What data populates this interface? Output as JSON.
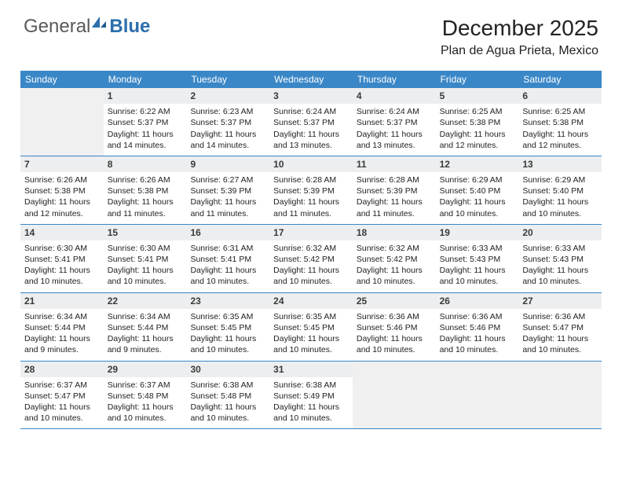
{
  "logo": {
    "text1": "General",
    "text2": "Blue"
  },
  "title": "December 2025",
  "location": "Plan de Agua Prieta, Mexico",
  "colors": {
    "header_bg": "#3a87c7",
    "header_fg": "#ffffff",
    "daynum_bg": "#eceeef",
    "empty_bg": "#f0f0f0",
    "divider": "#3a87c7",
    "logo_gray": "#5a5a5a",
    "logo_blue": "#2b6fab"
  },
  "day_names": [
    "Sunday",
    "Monday",
    "Tuesday",
    "Wednesday",
    "Thursday",
    "Friday",
    "Saturday"
  ],
  "weeks": [
    [
      null,
      {
        "n": "1",
        "sr": "Sunrise: 6:22 AM",
        "ss": "Sunset: 5:37 PM",
        "d1": "Daylight: 11 hours",
        "d2": "and 14 minutes."
      },
      {
        "n": "2",
        "sr": "Sunrise: 6:23 AM",
        "ss": "Sunset: 5:37 PM",
        "d1": "Daylight: 11 hours",
        "d2": "and 14 minutes."
      },
      {
        "n": "3",
        "sr": "Sunrise: 6:24 AM",
        "ss": "Sunset: 5:37 PM",
        "d1": "Daylight: 11 hours",
        "d2": "and 13 minutes."
      },
      {
        "n": "4",
        "sr": "Sunrise: 6:24 AM",
        "ss": "Sunset: 5:37 PM",
        "d1": "Daylight: 11 hours",
        "d2": "and 13 minutes."
      },
      {
        "n": "5",
        "sr": "Sunrise: 6:25 AM",
        "ss": "Sunset: 5:38 PM",
        "d1": "Daylight: 11 hours",
        "d2": "and 12 minutes."
      },
      {
        "n": "6",
        "sr": "Sunrise: 6:25 AM",
        "ss": "Sunset: 5:38 PM",
        "d1": "Daylight: 11 hours",
        "d2": "and 12 minutes."
      }
    ],
    [
      {
        "n": "7",
        "sr": "Sunrise: 6:26 AM",
        "ss": "Sunset: 5:38 PM",
        "d1": "Daylight: 11 hours",
        "d2": "and 12 minutes."
      },
      {
        "n": "8",
        "sr": "Sunrise: 6:26 AM",
        "ss": "Sunset: 5:38 PM",
        "d1": "Daylight: 11 hours",
        "d2": "and 11 minutes."
      },
      {
        "n": "9",
        "sr": "Sunrise: 6:27 AM",
        "ss": "Sunset: 5:39 PM",
        "d1": "Daylight: 11 hours",
        "d2": "and 11 minutes."
      },
      {
        "n": "10",
        "sr": "Sunrise: 6:28 AM",
        "ss": "Sunset: 5:39 PM",
        "d1": "Daylight: 11 hours",
        "d2": "and 11 minutes."
      },
      {
        "n": "11",
        "sr": "Sunrise: 6:28 AM",
        "ss": "Sunset: 5:39 PM",
        "d1": "Daylight: 11 hours",
        "d2": "and 11 minutes."
      },
      {
        "n": "12",
        "sr": "Sunrise: 6:29 AM",
        "ss": "Sunset: 5:40 PM",
        "d1": "Daylight: 11 hours",
        "d2": "and 10 minutes."
      },
      {
        "n": "13",
        "sr": "Sunrise: 6:29 AM",
        "ss": "Sunset: 5:40 PM",
        "d1": "Daylight: 11 hours",
        "d2": "and 10 minutes."
      }
    ],
    [
      {
        "n": "14",
        "sr": "Sunrise: 6:30 AM",
        "ss": "Sunset: 5:41 PM",
        "d1": "Daylight: 11 hours",
        "d2": "and 10 minutes."
      },
      {
        "n": "15",
        "sr": "Sunrise: 6:30 AM",
        "ss": "Sunset: 5:41 PM",
        "d1": "Daylight: 11 hours",
        "d2": "and 10 minutes."
      },
      {
        "n": "16",
        "sr": "Sunrise: 6:31 AM",
        "ss": "Sunset: 5:41 PM",
        "d1": "Daylight: 11 hours",
        "d2": "and 10 minutes."
      },
      {
        "n": "17",
        "sr": "Sunrise: 6:32 AM",
        "ss": "Sunset: 5:42 PM",
        "d1": "Daylight: 11 hours",
        "d2": "and 10 minutes."
      },
      {
        "n": "18",
        "sr": "Sunrise: 6:32 AM",
        "ss": "Sunset: 5:42 PM",
        "d1": "Daylight: 11 hours",
        "d2": "and 10 minutes."
      },
      {
        "n": "19",
        "sr": "Sunrise: 6:33 AM",
        "ss": "Sunset: 5:43 PM",
        "d1": "Daylight: 11 hours",
        "d2": "and 10 minutes."
      },
      {
        "n": "20",
        "sr": "Sunrise: 6:33 AM",
        "ss": "Sunset: 5:43 PM",
        "d1": "Daylight: 11 hours",
        "d2": "and 10 minutes."
      }
    ],
    [
      {
        "n": "21",
        "sr": "Sunrise: 6:34 AM",
        "ss": "Sunset: 5:44 PM",
        "d1": "Daylight: 11 hours",
        "d2": "and 9 minutes."
      },
      {
        "n": "22",
        "sr": "Sunrise: 6:34 AM",
        "ss": "Sunset: 5:44 PM",
        "d1": "Daylight: 11 hours",
        "d2": "and 9 minutes."
      },
      {
        "n": "23",
        "sr": "Sunrise: 6:35 AM",
        "ss": "Sunset: 5:45 PM",
        "d1": "Daylight: 11 hours",
        "d2": "and 10 minutes."
      },
      {
        "n": "24",
        "sr": "Sunrise: 6:35 AM",
        "ss": "Sunset: 5:45 PM",
        "d1": "Daylight: 11 hours",
        "d2": "and 10 minutes."
      },
      {
        "n": "25",
        "sr": "Sunrise: 6:36 AM",
        "ss": "Sunset: 5:46 PM",
        "d1": "Daylight: 11 hours",
        "d2": "and 10 minutes."
      },
      {
        "n": "26",
        "sr": "Sunrise: 6:36 AM",
        "ss": "Sunset: 5:46 PM",
        "d1": "Daylight: 11 hours",
        "d2": "and 10 minutes."
      },
      {
        "n": "27",
        "sr": "Sunrise: 6:36 AM",
        "ss": "Sunset: 5:47 PM",
        "d1": "Daylight: 11 hours",
        "d2": "and 10 minutes."
      }
    ],
    [
      {
        "n": "28",
        "sr": "Sunrise: 6:37 AM",
        "ss": "Sunset: 5:47 PM",
        "d1": "Daylight: 11 hours",
        "d2": "and 10 minutes."
      },
      {
        "n": "29",
        "sr": "Sunrise: 6:37 AM",
        "ss": "Sunset: 5:48 PM",
        "d1": "Daylight: 11 hours",
        "d2": "and 10 minutes."
      },
      {
        "n": "30",
        "sr": "Sunrise: 6:38 AM",
        "ss": "Sunset: 5:48 PM",
        "d1": "Daylight: 11 hours",
        "d2": "and 10 minutes."
      },
      {
        "n": "31",
        "sr": "Sunrise: 6:38 AM",
        "ss": "Sunset: 5:49 PM",
        "d1": "Daylight: 11 hours",
        "d2": "and 10 minutes."
      },
      null,
      null,
      null
    ]
  ]
}
